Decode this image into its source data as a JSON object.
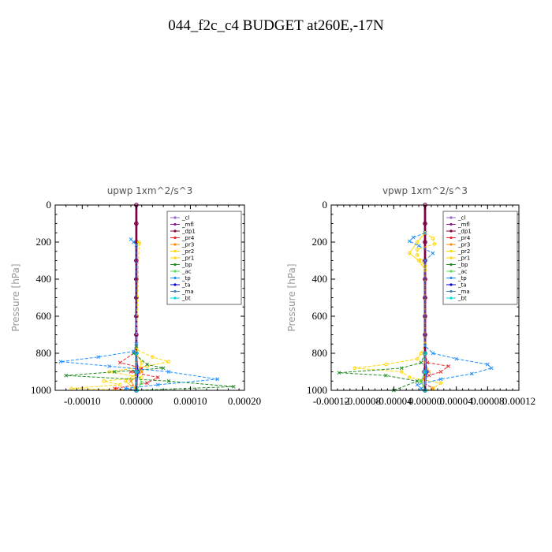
{
  "page": {
    "title": "044_f2c_c4  BUDGET at260E,-17N"
  },
  "chart_data": [
    {
      "type": "line",
      "title": "upwp   1xm^2/s^3",
      "ylabel": "Pressure [hPa]",
      "ylim": [
        1000,
        0
      ],
      "xlim": [
        -0.00015,
        0.0002
      ],
      "xticks": [
        "-0.00010",
        "0.00000",
        "0.00010",
        "0.00020"
      ],
      "xtick_values": [
        -0.0001,
        0.0,
        0.0001,
        0.0002
      ],
      "yticks": [
        0,
        200,
        400,
        600,
        800,
        1000
      ],
      "legend": [
        "_cl",
        "_mfl",
        "_dp1",
        "_pr4",
        "_pr3",
        "_pr2",
        "_pr1",
        "_bp",
        "_ac",
        "_tp",
        "_ta",
        "_ma",
        "_bt"
      ],
      "legend_position": "top-right",
      "grid": false,
      "series": [
        {
          "name": "_cl",
          "color": "#9966cc",
          "p": [
            0,
            100,
            200,
            300,
            400,
            500,
            600,
            700,
            800,
            900,
            1000
          ],
          "values": [
            0,
            0,
            0,
            0,
            0,
            0,
            0,
            0,
            0,
            0,
            0
          ]
        },
        {
          "name": "_mfl",
          "color": "#8b1a8b",
          "p": [
            0,
            100,
            200,
            300,
            400,
            500,
            600,
            700,
            800,
            900,
            1000
          ],
          "values": [
            0,
            0,
            0,
            0,
            0,
            0,
            0,
            0,
            0,
            0,
            0
          ]
        },
        {
          "name": "_dp1",
          "color": "#800040",
          "p": [
            0,
            100,
            200,
            300,
            400,
            500,
            600,
            700,
            800,
            900,
            1000
          ],
          "values": [
            0,
            0,
            0,
            0,
            0,
            0,
            0,
            0,
            0,
            0,
            0
          ]
        },
        {
          "name": "_pr4",
          "color": "#e8282e",
          "p": [
            750,
            800,
            850,
            880,
            900,
            930,
            960,
            990,
            1000
          ],
          "values": [
            0,
            -5e-06,
            -3e-05,
            1e-05,
            -1e-05,
            4e-05,
            2e-05,
            -4e-05,
            0
          ]
        },
        {
          "name": "_pr3",
          "color": "#ff8c00",
          "p": [
            850,
            900,
            950,
            1000
          ],
          "values": [
            0,
            1e-05,
            -1e-05,
            0
          ]
        },
        {
          "name": "_pr2",
          "color": "#ffd700",
          "p": [
            200,
            210,
            780,
            820,
            845,
            870,
            900,
            930,
            950,
            970,
            990,
            1000
          ],
          "values": [
            5e-06,
            5e-06,
            0.0,
            3e-05,
            6e-05,
            2e-05,
            -5e-05,
            1e-05,
            -6e-05,
            -3e-05,
            -0.00012,
            0
          ]
        },
        {
          "name": "_pr1",
          "color": "#ffd700",
          "p": [
            800,
            850,
            900,
            950,
            1000
          ],
          "values": [
            0,
            1e-05,
            5e-06,
            -2e-05,
            0
          ]
        },
        {
          "name": "_bp",
          "color": "#228b22",
          "p": [
            760,
            800,
            860,
            880,
            900,
            920,
            950,
            980,
            1000
          ],
          "values": [
            0,
            -5e-06,
            2e-05,
            5e-05,
            -4e-05,
            -0.00013,
            6e-05,
            0.00018,
            0
          ]
        },
        {
          "name": "_ac",
          "color": "#55dd55",
          "p": [
            900,
            960,
            1000
          ],
          "values": [
            0,
            1e-05,
            0
          ]
        },
        {
          "name": "_tp",
          "color": "#1e90ff",
          "p": [
            185,
            200,
            215,
            750,
            790,
            820,
            845,
            870,
            900,
            940,
            970,
            990,
            1000
          ],
          "values": [
            -1e-05,
            -5e-06,
            0.0,
            0,
            -5e-06,
            -7e-05,
            -0.00014,
            -5e-05,
            6e-05,
            0.00015,
            4e-05,
            -2e-05,
            0
          ]
        },
        {
          "name": "_ta",
          "color": "#0000cc",
          "p": [
            800,
            900,
            1000
          ],
          "values": [
            0,
            3e-06,
            0
          ]
        },
        {
          "name": "_ma",
          "color": "#4682b4",
          "p": [
            800,
            900,
            1000
          ],
          "values": [
            0,
            -2e-06,
            0
          ]
        },
        {
          "name": "_bt",
          "color": "#00d8e0",
          "p": [
            800,
            900,
            1000
          ],
          "values": [
            0,
            1e-06,
            0
          ]
        }
      ]
    },
    {
      "type": "line",
      "title": "vpwp   1xm^2/s^3",
      "ylabel": "Pressure [hPa]",
      "ylim": [
        1000,
        0
      ],
      "xlim": [
        -0.00012,
        0.00012
      ],
      "xticks": [
        "-0.00012",
        "-0.00008",
        "-0.00004",
        "0.00000",
        "0.00004",
        "0.00008",
        "0.00012"
      ],
      "xtick_values": [
        -0.00012,
        -8e-05,
        -4e-05,
        0.0,
        4e-05,
        8e-05,
        0.00012
      ],
      "yticks": [
        0,
        200,
        400,
        600,
        800,
        1000
      ],
      "legend": [
        "_cl",
        "_mfl",
        "_dp1",
        "_pr4",
        "_pr3",
        "_pr2",
        "_pr1",
        "_bp",
        "_ac",
        "_tp",
        "_ta",
        "_ma",
        "_bt"
      ],
      "legend_position": "top-right",
      "grid": false,
      "series": [
        {
          "name": "_cl",
          "color": "#9966cc",
          "p": [
            0,
            100,
            200,
            300,
            400,
            500,
            600,
            700,
            800,
            900,
            1000
          ],
          "values": [
            0,
            0,
            0,
            0,
            0,
            0,
            0,
            0,
            0,
            0,
            0
          ]
        },
        {
          "name": "_mfl",
          "color": "#8b1a8b",
          "p": [
            0,
            100,
            200,
            300,
            400,
            500,
            600,
            700,
            800,
            900,
            1000
          ],
          "values": [
            0,
            0,
            0,
            0,
            0,
            0,
            0,
            0,
            0,
            0,
            0
          ]
        },
        {
          "name": "_dp1",
          "color": "#800040",
          "p": [
            0,
            100,
            200,
            300,
            400,
            500,
            600,
            700,
            800,
            900,
            1000
          ],
          "values": [
            0,
            0,
            0,
            0,
            0,
            0,
            0,
            0,
            0,
            0,
            0
          ]
        },
        {
          "name": "_pr4",
          "color": "#e8282e",
          "p": [
            800,
            850,
            870,
            900,
            920,
            950,
            990,
            1000
          ],
          "values": [
            0,
            3e-06,
            3e-05,
            2e-05,
            5e-06,
            -5e-06,
            1e-05,
            0
          ]
        },
        {
          "name": "_pr3",
          "color": "#ff8c00",
          "p": [
            850,
            900,
            950,
            1000
          ],
          "values": [
            0,
            5e-06,
            -5e-06,
            0
          ]
        },
        {
          "name": "_pr2",
          "color": "#ffd700",
          "p": [
            150,
            180,
            210,
            240,
            270,
            300,
            330,
            750,
            800,
            830,
            860,
            880,
            900,
            930,
            960,
            990,
            1000
          ],
          "values": [
            0,
            1e-05,
            1.2e-05,
            -1e-05,
            -1e-05,
            -5e-06,
            0.0,
            0,
            -5e-06,
            -1e-05,
            -5e-05,
            -9e-05,
            -3e-05,
            -2e-05,
            2e-05,
            1e-05,
            0
          ]
        },
        {
          "name": "_pr1",
          "color": "#ffd700",
          "p": [
            150,
            200,
            260,
            300,
            350
          ],
          "values": [
            0,
            -1e-05,
            -2e-05,
            -8e-06,
            0
          ]
        },
        {
          "name": "_bp",
          "color": "#228b22",
          "p": [
            800,
            850,
            880,
            905,
            920,
            950,
            1000
          ],
          "values": [
            0,
            -5e-06,
            -3e-05,
            -0.00011,
            -5e-05,
            -1e-05,
            -4e-05
          ]
        },
        {
          "name": "_ac",
          "color": "#55dd55",
          "p": [
            900,
            950,
            1000
          ],
          "values": [
            0,
            -5e-06,
            0
          ]
        },
        {
          "name": "_tp",
          "color": "#1e90ff",
          "p": [
            150,
            175,
            195,
            220,
            260,
            300,
            760,
            800,
            830,
            860,
            880,
            910,
            940,
            970,
            990,
            1000
          ],
          "values": [
            0,
            -1.5e-05,
            -2e-05,
            -8e-06,
            1e-05,
            0.0,
            0,
            1e-05,
            4e-05,
            8e-05,
            8.5e-05,
            6e-05,
            2e-05,
            -1e-05,
            -5e-06,
            0
          ]
        },
        {
          "name": "_ta",
          "color": "#0000cc",
          "p": [
            800,
            900,
            1000
          ],
          "values": [
            0,
            2e-06,
            0
          ]
        },
        {
          "name": "_ma",
          "color": "#4682b4",
          "p": [
            800,
            900,
            1000
          ],
          "values": [
            0,
            -2e-06,
            0
          ]
        },
        {
          "name": "_bt",
          "color": "#00d8e0",
          "p": [
            800,
            900,
            1000
          ],
          "values": [
            0,
            1e-06,
            0
          ]
        }
      ]
    }
  ]
}
